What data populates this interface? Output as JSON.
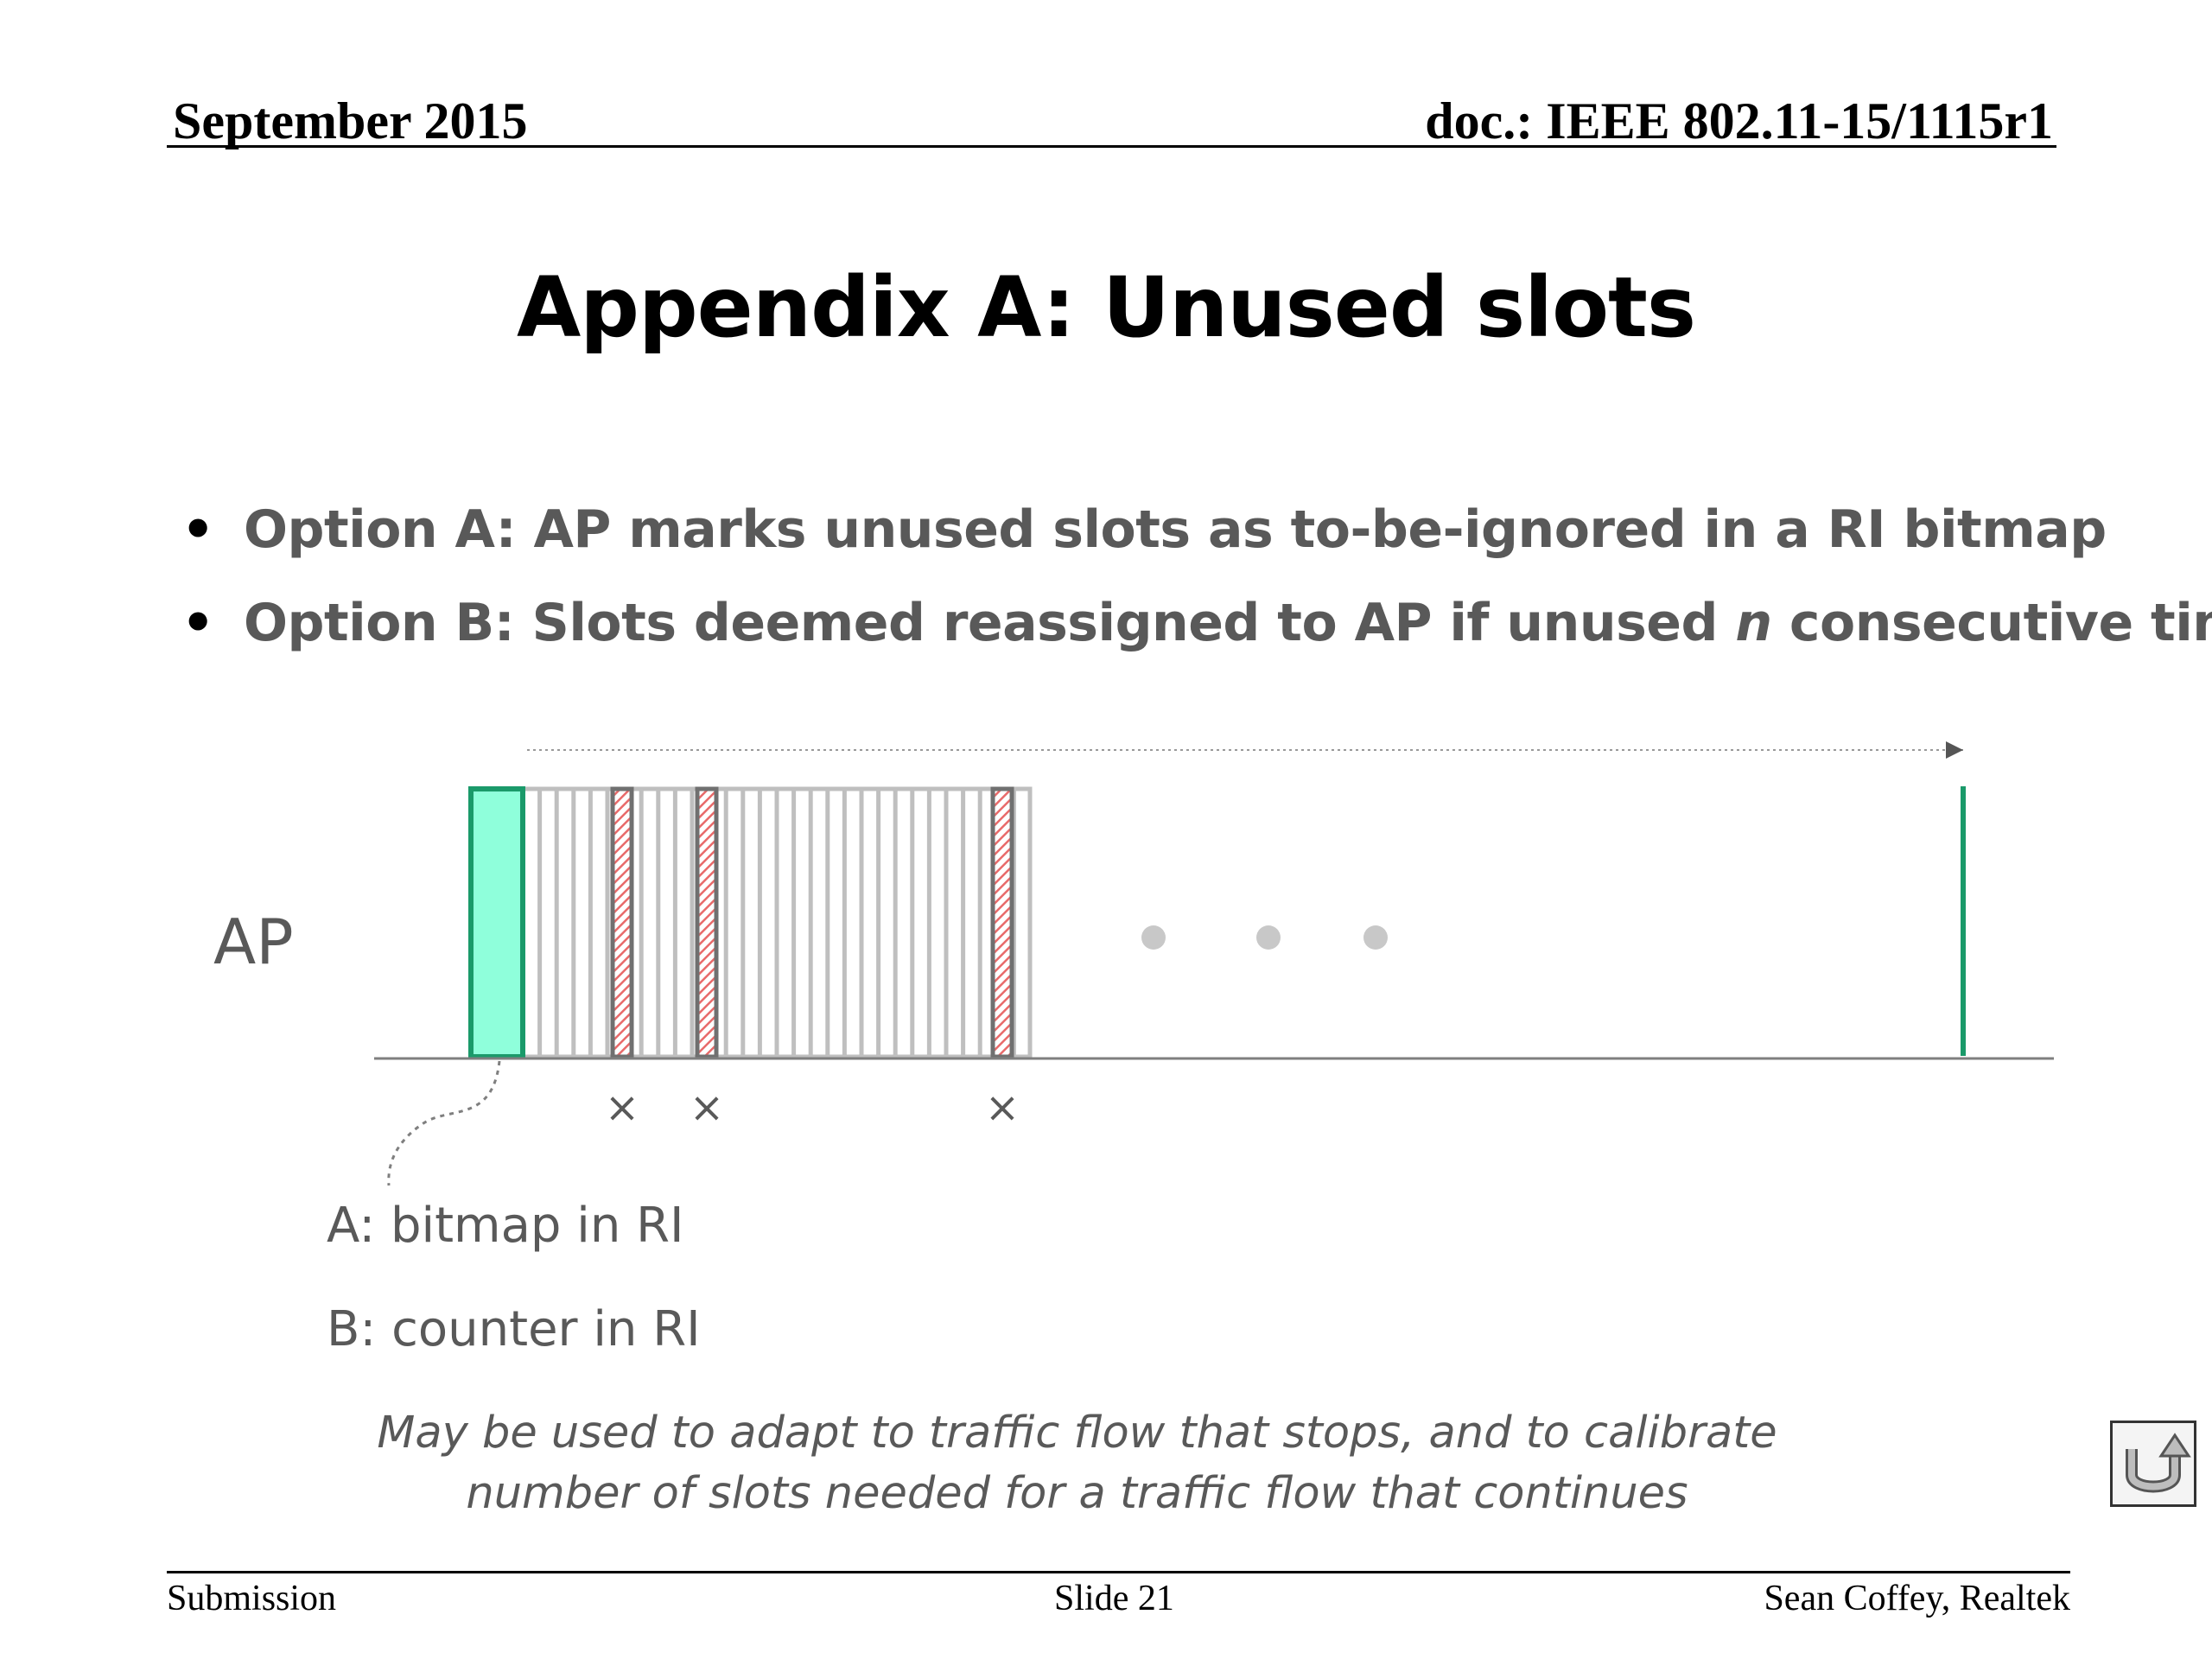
{
  "header": {
    "date": "September 2015",
    "doc": "doc.: IEEE 802.11-15/1115r1"
  },
  "title": "Appendix A: Unused slots",
  "bullets": [
    {
      "marker": "•",
      "text": "Option A:  AP marks unused slots as to-be-ignored in a RI bitmap"
    },
    {
      "marker": "•",
      "text_before": "Option B: Slots deemed reassigned to AP if unused ",
      "text_italic": "n",
      "text_after": " consecutive times"
    }
  ],
  "diagram": {
    "station_label": "AP",
    "caption_a": "A: bitmap in RI",
    "caption_b": "B: counter in RI",
    "unused_marker": "×",
    "ellipsis": "• • •",
    "colors": {
      "ri_fill": "#8fffdb",
      "ri_stroke": "#1a9a6a",
      "slot_stroke": "#bfbfbf",
      "unused_fill": "#e86a6a",
      "unused_stroke": "#707070",
      "end_marker": "#1a9a6a"
    }
  },
  "note": {
    "line1": "May be used to adapt to traffic flow that stops, and to calibrate",
    "line2": "number of slots needed for a traffic flow that continues"
  },
  "footer": {
    "left": "Submission",
    "center": "Slide 21",
    "right": "Sean Coffey, Realtek"
  },
  "icons": {
    "return_button": "return-arrow-icon"
  }
}
